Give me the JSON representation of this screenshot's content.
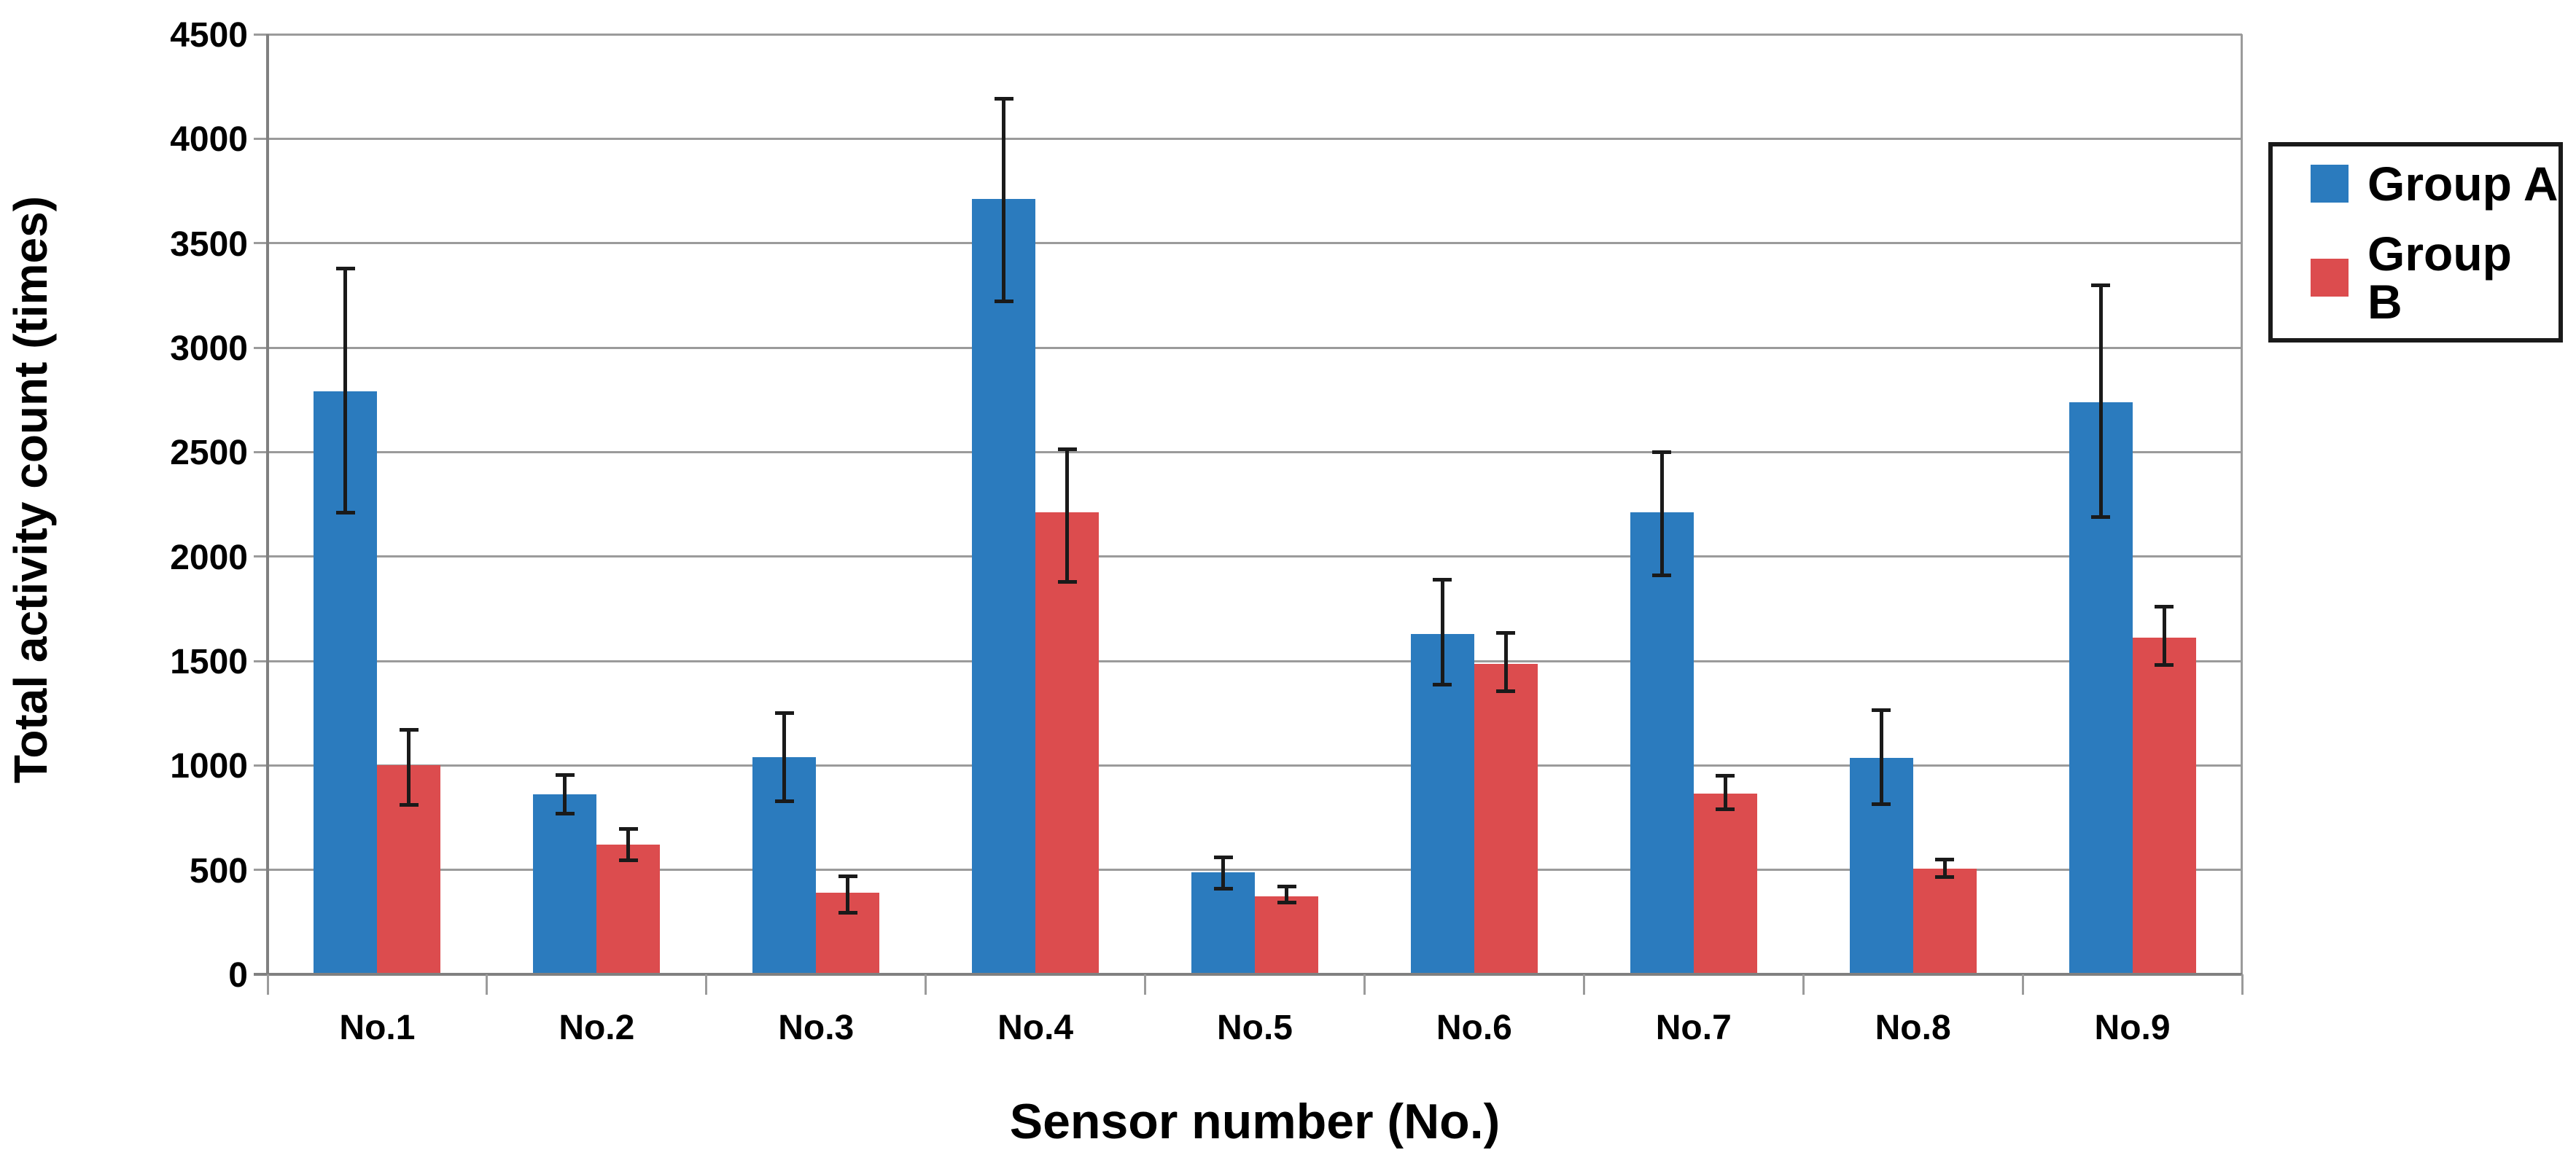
{
  "chart_data": {
    "type": "bar",
    "title": "",
    "xlabel": "Sensor number (No.)",
    "ylabel": "Total activity count (times)",
    "categories": [
      "No.1",
      "No.2",
      "No.3",
      "No.4",
      "No.5",
      "No.6",
      "No.7",
      "No.8",
      "No.9"
    ],
    "series": [
      {
        "name": "Group A",
        "color": "#2B7BBE",
        "values": [
          2790,
          860,
          1040,
          3710,
          490,
          1630,
          2210,
          1035,
          2740
        ],
        "error_low": [
          2210,
          770,
          830,
          3220,
          410,
          1385,
          1910,
          815,
          2190
        ],
        "error_high": [
          3380,
          955,
          1250,
          4190,
          560,
          1890,
          2500,
          1265,
          3300
        ]
      },
      {
        "name": "Group B",
        "color": "#DC4C4E",
        "values": [
          1000,
          620,
          390,
          2210,
          375,
          1485,
          865,
          505,
          1610
        ],
        "error_low": [
          810,
          545,
          295,
          1880,
          345,
          1355,
          790,
          465,
          1480
        ],
        "error_high": [
          1170,
          695,
          470,
          2515,
          420,
          1635,
          950,
          550,
          1760
        ]
      }
    ],
    "ylim": [
      0,
      4500
    ],
    "ytick_step": 500,
    "ytick_labels": [
      "0",
      "500",
      "1000",
      "1500",
      "2000",
      "2500",
      "3000",
      "3500",
      "4000",
      "4500"
    ],
    "grid": "horizontal",
    "legend_position": "right-top",
    "colors": {
      "gridline": "#9B9B9B",
      "axis": "#808080",
      "error_bar": "#1A1A1A",
      "background": "#FFFFFF",
      "text": "#000000"
    }
  }
}
